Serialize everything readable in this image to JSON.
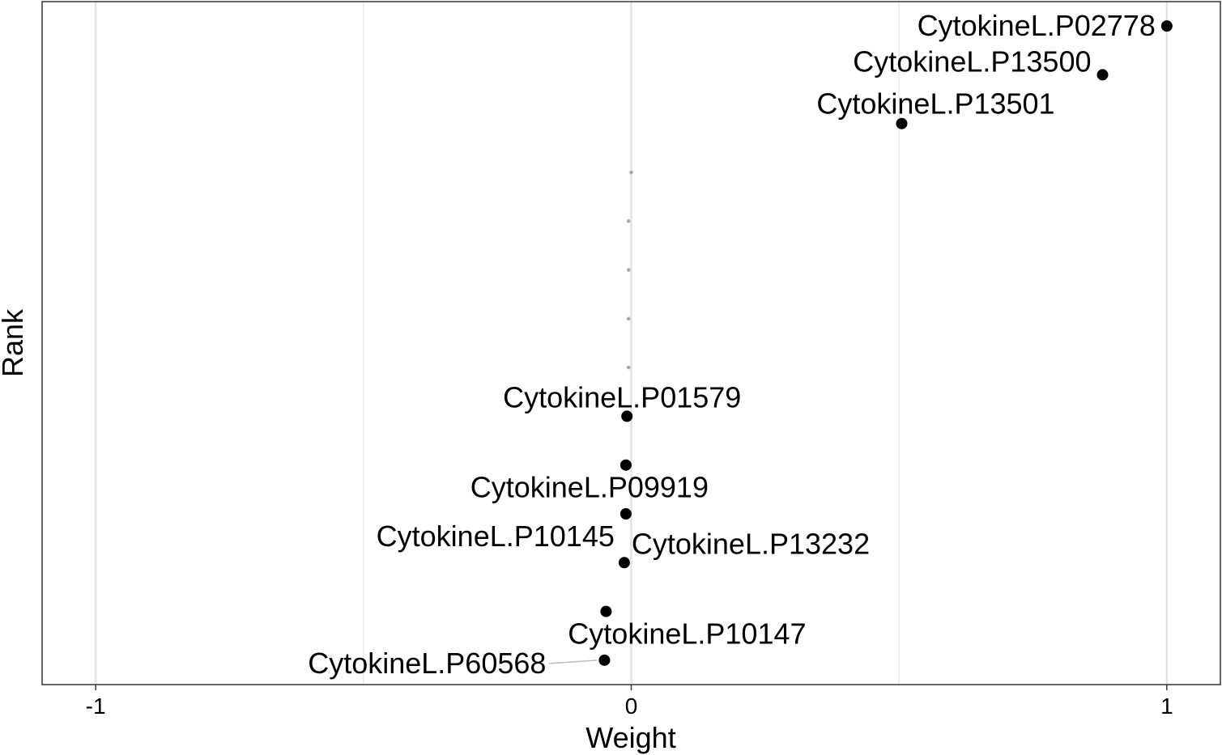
{
  "chart_data": {
    "type": "scatter",
    "title": "",
    "xlabel": "Weight",
    "ylabel": "Rank",
    "xlim": [
      -1.1,
      1.1
    ],
    "ylim": [
      0.5,
      14.5
    ],
    "x_ticks": [
      -1,
      0,
      1
    ],
    "x_tick_labels": [
      "-1",
      "0",
      "1"
    ],
    "grid": "vertical major and minor",
    "points": [
      {
        "rank": 14,
        "weight": 1.0,
        "label": "CytokineL.P02778",
        "highlighted": true
      },
      {
        "rank": 13,
        "weight": 0.88,
        "label": "CytokineL.P13500",
        "highlighted": true
      },
      {
        "rank": 12,
        "weight": 0.505,
        "label": "CytokineL.P13501",
        "highlighted": true
      },
      {
        "rank": 11,
        "weight": 0.0,
        "label": "",
        "highlighted": false
      },
      {
        "rank": 10,
        "weight": -0.005,
        "label": "",
        "highlighted": false
      },
      {
        "rank": 9,
        "weight": -0.005,
        "label": "",
        "highlighted": false
      },
      {
        "rank": 8,
        "weight": -0.005,
        "label": "",
        "highlighted": false
      },
      {
        "rank": 7,
        "weight": -0.005,
        "label": "",
        "highlighted": false
      },
      {
        "rank": 6,
        "weight": -0.008,
        "label": "CytokineL.P01579",
        "highlighted": true
      },
      {
        "rank": 5,
        "weight": -0.01,
        "label": "CytokineL.P09919",
        "highlighted": true
      },
      {
        "rank": 4,
        "weight": -0.01,
        "label": "CytokineL.P10145",
        "highlighted": true
      },
      {
        "rank": 3,
        "weight": -0.013,
        "label": "CytokineL.P13232",
        "highlighted": true
      },
      {
        "rank": 2,
        "weight": -0.047,
        "label": "CytokineL.P10147",
        "highlighted": true
      },
      {
        "rank": 1,
        "weight": -0.05,
        "label": "CytokineL.P60568",
        "highlighted": true
      }
    ]
  }
}
